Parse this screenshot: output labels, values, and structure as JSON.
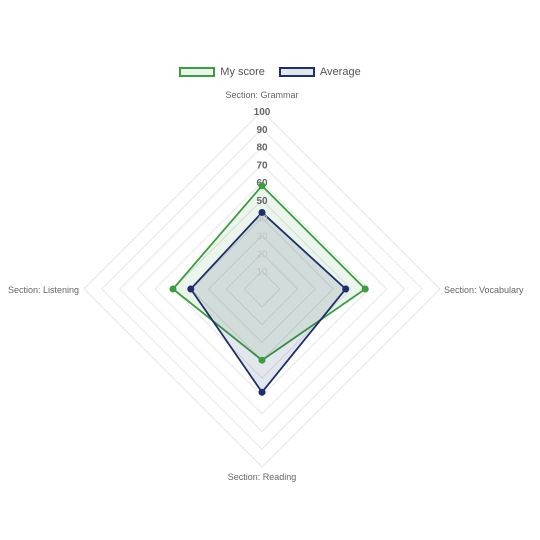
{
  "chart_data": {
    "type": "radar",
    "axes": [
      "Section: Grammar",
      "Section: Vocabulary",
      "Section: Reading",
      "Section: Listening"
    ],
    "r_ticks": [
      10,
      20,
      30,
      40,
      50,
      60,
      70,
      80,
      90,
      100
    ],
    "r_range": [
      0,
      100
    ],
    "legend_position": "top",
    "series": [
      {
        "name": "My score",
        "values": [
          58,
          58,
          40,
          50
        ],
        "color": "#3a9e3f",
        "fill": "rgba(58,158,63,0.10)"
      },
      {
        "name": "Average",
        "values": [
          43,
          47,
          58,
          40
        ],
        "color": "#1f2f6b",
        "fill": "rgba(31,47,107,0.12)"
      }
    ]
  },
  "legend": {
    "my_score_label": "My score",
    "average_label": "Average"
  }
}
